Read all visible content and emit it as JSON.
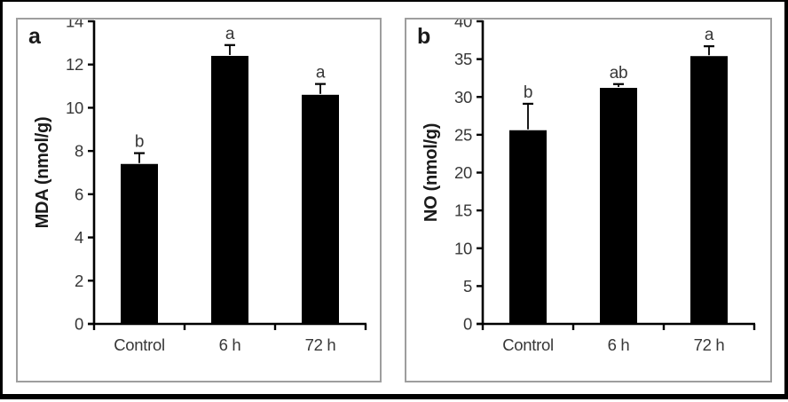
{
  "chart_data": [
    {
      "type": "bar",
      "panel_label": "a",
      "title": "",
      "xlabel": "",
      "ylabel": "MDA (nmol/g)",
      "categories": [
        "Control",
        "6 h",
        "72 h"
      ],
      "values": [
        7.4,
        12.4,
        10.6
      ],
      "errors_upper": [
        0.5,
        0.5,
        0.5
      ],
      "sig_letters": [
        "b",
        "a",
        "a"
      ],
      "ylim": [
        0,
        14
      ],
      "ytick_step": 2,
      "ytick_labels": [
        "0",
        "2",
        "4",
        "6",
        "8",
        "10",
        "12",
        "14"
      ],
      "grid": false,
      "legend": "none",
      "bar_color": "#000000"
    },
    {
      "type": "bar",
      "panel_label": "b",
      "title": "",
      "xlabel": "",
      "ylabel": "NO (nmol/g)",
      "categories": [
        "Control",
        "6 h",
        "72 h"
      ],
      "values": [
        25.6,
        31.2,
        35.4
      ],
      "errors_upper": [
        3.5,
        0.5,
        1.3
      ],
      "sig_letters": [
        "b",
        "ab",
        "a"
      ],
      "ylim": [
        0,
        40
      ],
      "ytick_step": 5,
      "ytick_labels": [
        "0",
        "5",
        "10",
        "15",
        "20",
        "25",
        "30",
        "35",
        "40"
      ],
      "grid": false,
      "legend": "none",
      "bar_color": "#000000"
    }
  ],
  "colors": {
    "bar": "#000000",
    "axis": "#000000",
    "tick_text": "#373737",
    "category_text": "#373737",
    "sig_letter_text": "#373737",
    "ylabel_text": "#1a1a1a",
    "panel_border": "#9e9e9e",
    "outer_border": "#000000",
    "background": "#ffffff"
  }
}
